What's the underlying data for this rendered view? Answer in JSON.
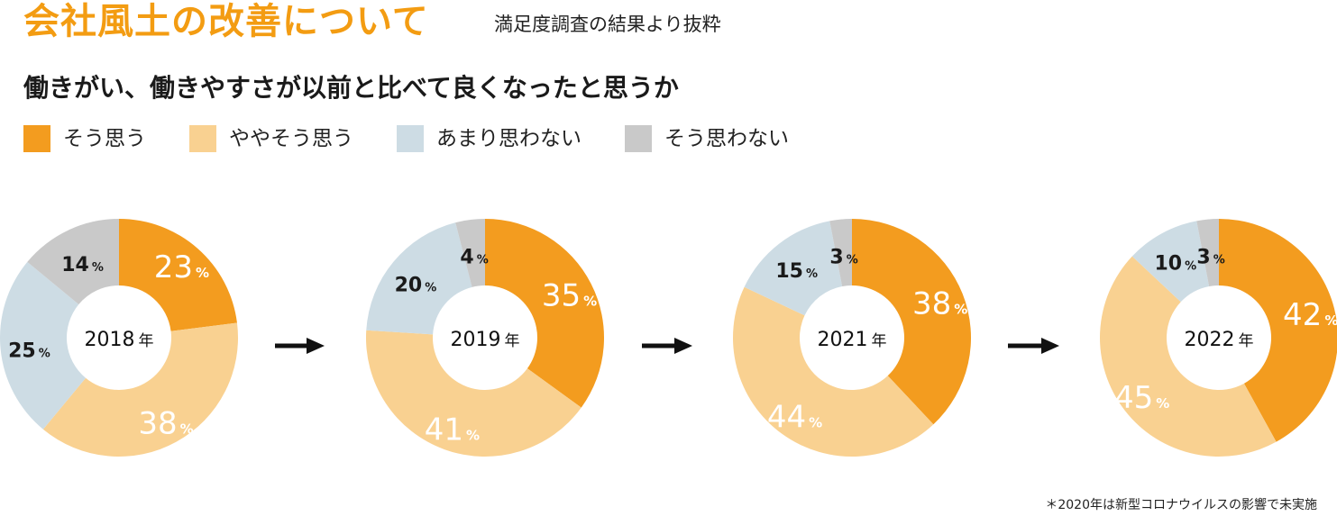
{
  "header": {
    "title": "会社風土の改善について",
    "subtitle": "満足度調査の結果より抜粋"
  },
  "question": "働きがい、働きやすさが以前と比べて良くなったと思うか",
  "legend": [
    {
      "label": "そう思う",
      "color": "#f39c1f"
    },
    {
      "label": "ややそう思う",
      "color": "#f9d191"
    },
    {
      "label": "あまり思わない",
      "color": "#cddce4"
    },
    {
      "label": "そう思わない",
      "color": "#c9c9c9"
    }
  ],
  "percent_symbol": "%",
  "year_suffix": "年",
  "chart_data": [
    {
      "type": "pie",
      "variant": "donut",
      "title": "2018",
      "categories": [
        "そう思う",
        "ややそう思う",
        "あまり思わない",
        "そう思わない"
      ],
      "values": [
        23,
        38,
        25,
        14
      ]
    },
    {
      "type": "pie",
      "variant": "donut",
      "title": "2019",
      "categories": [
        "そう思う",
        "ややそう思う",
        "あまり思わない",
        "そう思わない"
      ],
      "values": [
        35,
        41,
        20,
        4
      ]
    },
    {
      "type": "pie",
      "variant": "donut",
      "title": "2021",
      "categories": [
        "そう思う",
        "ややそう思う",
        "あまり思わない",
        "そう思わない"
      ],
      "values": [
        38,
        44,
        15,
        3
      ]
    },
    {
      "type": "pie",
      "variant": "donut",
      "title": "2022",
      "categories": [
        "そう思う",
        "ややそう思う",
        "あまり思わない",
        "そう思わない"
      ],
      "values": [
        42,
        45,
        10,
        3
      ]
    }
  ],
  "footnote": "＊2020年は新型コロナウイルスの影響で未実施"
}
